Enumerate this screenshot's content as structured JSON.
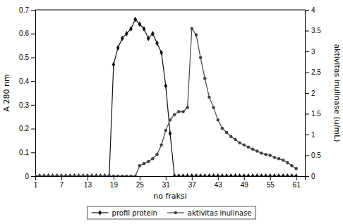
{
  "chart_data": {
    "type": "line",
    "x_label": "no fraksi",
    "y_label": "A 280 nm",
    "y2_label": "aktivitas inulinase (u/mL)",
    "x": [
      1,
      2,
      3,
      4,
      5,
      6,
      7,
      8,
      9,
      10,
      11,
      12,
      13,
      14,
      15,
      16,
      17,
      18,
      19,
      20,
      21,
      22,
      23,
      24,
      25,
      26,
      27,
      28,
      29,
      30,
      31,
      32,
      33,
      34,
      35,
      36,
      37,
      38,
      39,
      40,
      41,
      42,
      43,
      44,
      45,
      46,
      47,
      48,
      49,
      50,
      51,
      52,
      53,
      54,
      55,
      56,
      57,
      58,
      59,
      60,
      61
    ],
    "series": [
      {
        "name": "profil protein",
        "color": "#111111",
        "marker": "diamond",
        "values": [
          0.0,
          0.0,
          0.0,
          0.0,
          0.0,
          0.0,
          0.0,
          0.0,
          0.0,
          0.0,
          0.0,
          0.0,
          0.0,
          0.0,
          0.0,
          0.0,
          0.0,
          0.0,
          0.47,
          0.54,
          0.58,
          0.6,
          0.62,
          0.66,
          0.64,
          0.62,
          0.58,
          0.6,
          0.56,
          0.52,
          0.38,
          0.18,
          0.0,
          0.0,
          0.0,
          0.0,
          0.0,
          0.0,
          0.0,
          0.0,
          0.0,
          0.0,
          0.0,
          0.0,
          0.0,
          0.0,
          0.0,
          0.0,
          0.0,
          0.0,
          0.0,
          0.0,
          0.0,
          0.0,
          0.0,
          0.0,
          0.0,
          0.0,
          0.0,
          0.0,
          0.0
        ]
      },
      {
        "name": "aktivitas inulinase",
        "color": "#444444",
        "marker": "circle",
        "axis": "y2",
        "values": [
          0.0,
          0.0,
          0.0,
          0.0,
          0.0,
          0.0,
          0.0,
          0.0,
          0.0,
          0.0,
          0.0,
          0.0,
          0.0,
          0.0,
          0.0,
          0.0,
          0.0,
          0.0,
          0.0,
          0.0,
          0.0,
          0.0,
          0.0,
          0.0,
          0.25,
          0.3,
          0.35,
          0.42,
          0.52,
          0.75,
          1.1,
          1.35,
          1.48,
          1.55,
          1.55,
          1.65,
          3.55,
          3.4,
          2.85,
          2.35,
          1.9,
          1.65,
          1.35,
          1.15,
          1.05,
          0.95,
          0.88,
          0.8,
          0.75,
          0.7,
          0.65,
          0.6,
          0.55,
          0.52,
          0.5,
          0.45,
          0.42,
          0.38,
          0.32,
          0.25,
          0.18
        ]
      }
    ],
    "xlim": [
      1,
      63
    ],
    "xticks": [
      1,
      7,
      13,
      19,
      25,
      31,
      37,
      43,
      49,
      55,
      61
    ],
    "ylim": [
      0,
      0.7
    ],
    "yticks": [
      0,
      0.1,
      0.2,
      0.3,
      0.4,
      0.5,
      0.6,
      0.7
    ],
    "y2lim": [
      0,
      4
    ],
    "y2ticks": [
      0,
      0.5,
      1,
      1.5,
      2,
      2.5,
      3,
      3.5,
      4
    ],
    "grid": false,
    "legend": "bottom"
  }
}
